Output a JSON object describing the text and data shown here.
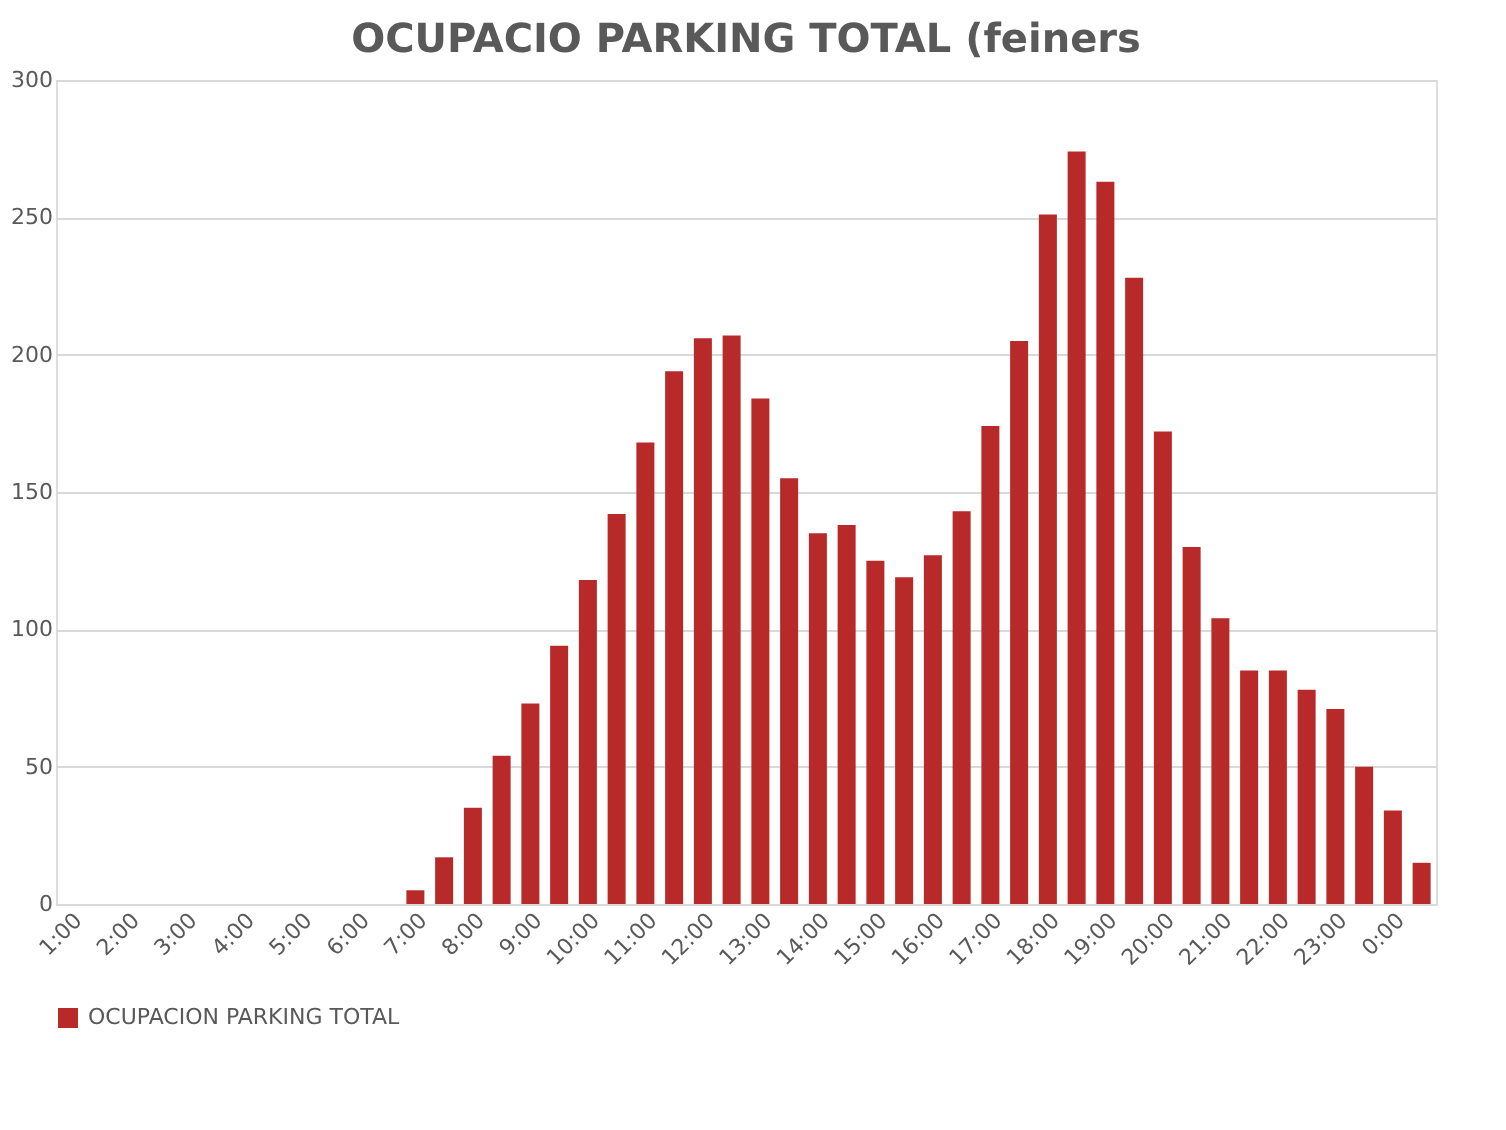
{
  "chart_data": {
    "type": "bar",
    "title": "OCUPACIO PARKING TOTAL (feiners",
    "categories": [
      "1:00",
      null,
      "2:00",
      null,
      "3:00",
      null,
      "4:00",
      null,
      "5:00",
      null,
      "6:00",
      null,
      "7:00",
      null,
      "8:00",
      null,
      "9:00",
      null,
      "10:00",
      null,
      "11:00",
      null,
      "12:00",
      null,
      "13:00",
      null,
      "14:00",
      null,
      "15:00",
      null,
      "16:00",
      null,
      "17:00",
      null,
      "18:00",
      null,
      "19:00",
      null,
      "20:00",
      null,
      "21:00",
      null,
      "22:00",
      null,
      "23:00",
      null,
      "0:00",
      null
    ],
    "series": [
      {
        "name": "OCUPACION PARKING TOTAL",
        "color": "#b8292a",
        "values": [
          0,
          0,
          0,
          0,
          0,
          0,
          0,
          0,
          0,
          0,
          0,
          0,
          5,
          17,
          35,
          54,
          73,
          94,
          118,
          142,
          168,
          194,
          206,
          207,
          184,
          155,
          135,
          138,
          125,
          119,
          127,
          143,
          174,
          205,
          251,
          274,
          263,
          228,
          172,
          130,
          104,
          85,
          85,
          78,
          71,
          50,
          34,
          15
        ]
      }
    ],
    "ylim": [
      0,
      300
    ],
    "yticks": [
      0,
      50,
      100,
      150,
      200,
      250,
      300
    ],
    "grid": "y",
    "legend": "bottom"
  }
}
